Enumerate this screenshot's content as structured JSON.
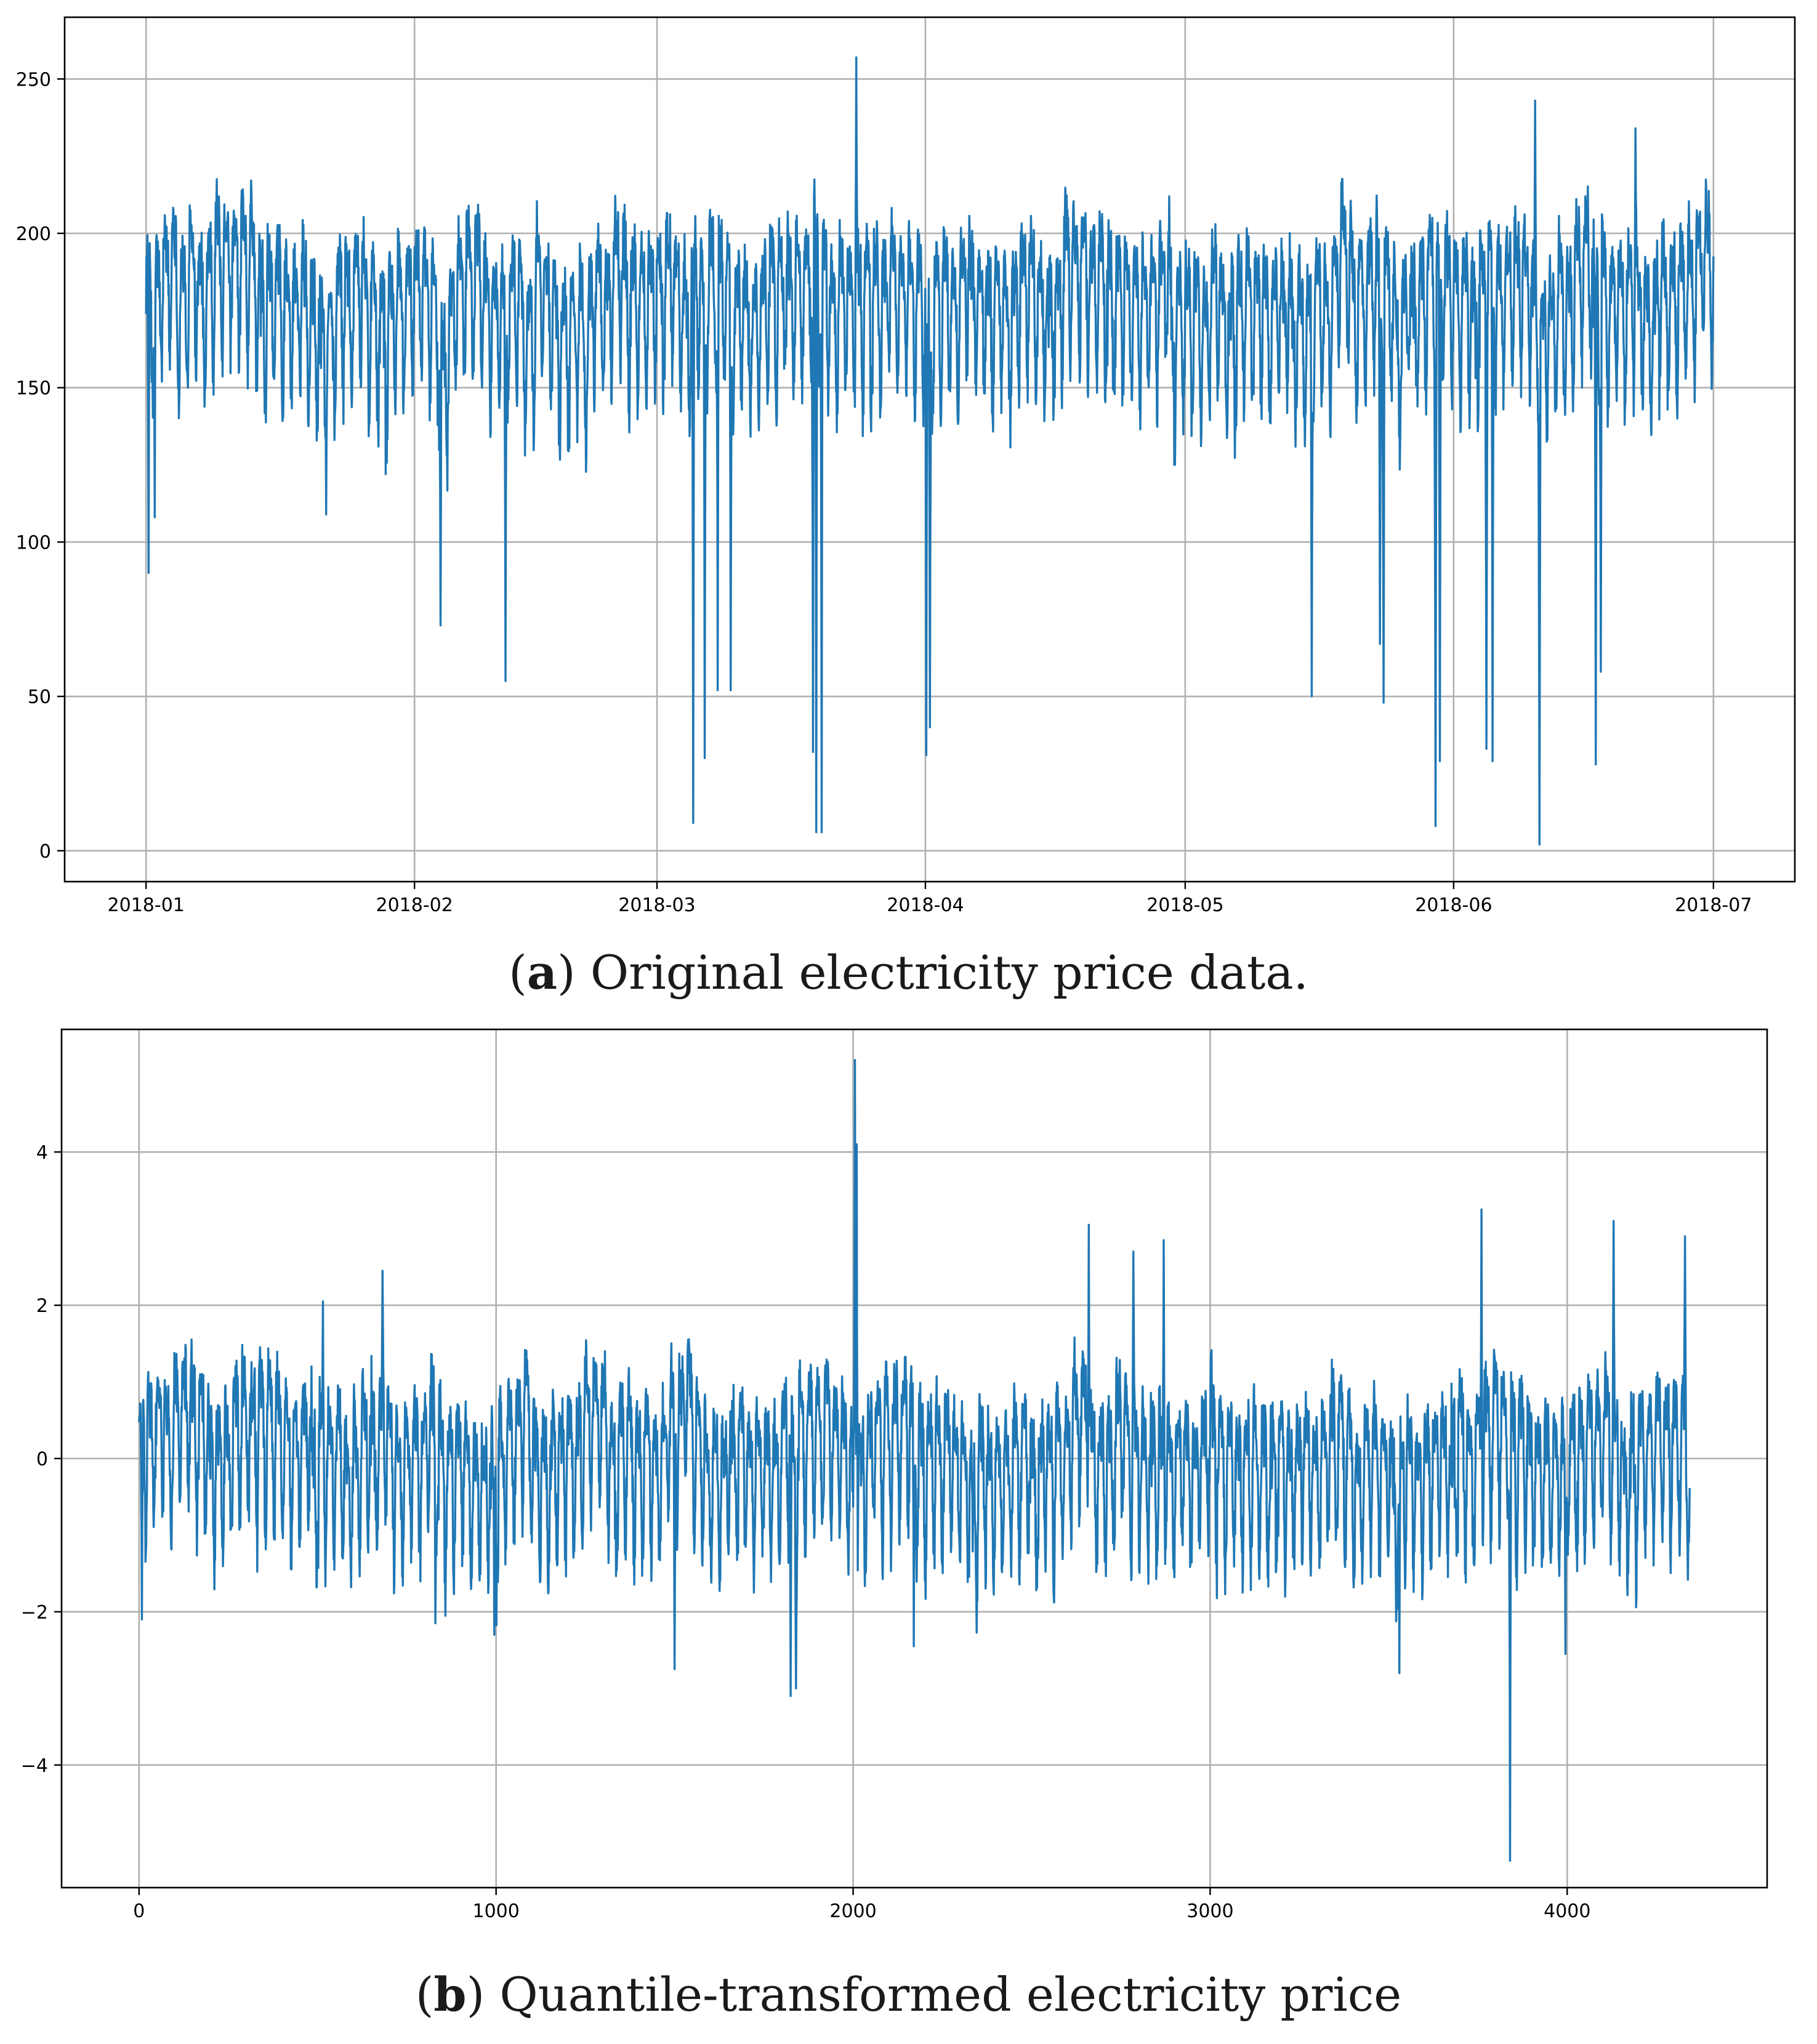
{
  "chart_data": [
    {
      "type": "line",
      "panel_label": "a",
      "caption": "Original electricity price data.",
      "color": "#1f77b4",
      "xlabel": "",
      "ylabel": "",
      "x_tick_labels": [
        "2018-01",
        "2018-02",
        "2018-03",
        "2018-04",
        "2018-05",
        "2018-06",
        "2018-07"
      ],
      "x_tick_days": [
        0,
        31,
        59,
        90,
        120,
        151,
        181
      ],
      "xlim_days": [
        -9.4,
        190.4
      ],
      "y_ticks": [
        0,
        50,
        100,
        150,
        200,
        250
      ],
      "ylim": [
        -10,
        270
      ],
      "grid": true,
      "series": [
        {
          "name": "price",
          "n_points": 4344,
          "x_unit": "days since 2018-01-01",
          "baseline_range": [
            140,
            215
          ],
          "spikes": [
            {
              "x": 0.3,
              "y": 90
            },
            {
              "x": 1.0,
              "y": 108
            },
            {
              "x": 34.0,
              "y": 73
            },
            {
              "x": 41.5,
              "y": 55
            },
            {
              "x": 63.2,
              "y": 9
            },
            {
              "x": 64.5,
              "y": 30
            },
            {
              "x": 66.0,
              "y": 52
            },
            {
              "x": 67.5,
              "y": 52
            },
            {
              "x": 77.0,
              "y": 32
            },
            {
              "x": 77.4,
              "y": 6
            },
            {
              "x": 78.0,
              "y": 6
            },
            {
              "x": 82.0,
              "y": 257
            },
            {
              "x": 90.1,
              "y": 31
            },
            {
              "x": 90.5,
              "y": 40
            },
            {
              "x": 134.6,
              "y": 50
            },
            {
              "x": 142.5,
              "y": 67
            },
            {
              "x": 142.9,
              "y": 48
            },
            {
              "x": 148.9,
              "y": 8
            },
            {
              "x": 149.4,
              "y": 29
            },
            {
              "x": 154.8,
              "y": 33
            },
            {
              "x": 155.5,
              "y": 29
            },
            {
              "x": 160.9,
              "y": 2
            },
            {
              "x": 160.4,
              "y": 243
            },
            {
              "x": 167.4,
              "y": 28
            },
            {
              "x": 168.0,
              "y": 58
            },
            {
              "x": 172.0,
              "y": 234
            }
          ]
        }
      ]
    },
    {
      "type": "line",
      "panel_label": "b",
      "caption": "Quantile-transformed electricity price",
      "color": "#1f77b4",
      "xlabel": "",
      "ylabel": "",
      "x_ticks": [
        0,
        1000,
        2000,
        3000,
        4000
      ],
      "xlim": [
        -217,
        4560
      ],
      "y_ticks": [
        -4,
        -2,
        0,
        2,
        4
      ],
      "y_tick_labels": [
        "−4",
        "−2",
        "0",
        "2",
        "4"
      ],
      "ylim": [
        -5.6,
        5.6
      ],
      "grid": true,
      "series": [
        {
          "name": "transformed price",
          "n_points": 4344,
          "x_range": [
            0,
            4343
          ],
          "baseline_range": [
            -1.5,
            1.5
          ],
          "spikes": [
            {
              "x": 8,
              "y": -2.1
            },
            {
              "x": 682,
              "y": 2.45
            },
            {
              "x": 515,
              "y": 2.05
            },
            {
              "x": 830,
              "y": -2.15
            },
            {
              "x": 995,
              "y": -2.3
            },
            {
              "x": 1500,
              "y": -2.75
            },
            {
              "x": 1825,
              "y": -3.1
            },
            {
              "x": 1840,
              "y": -3.0
            },
            {
              "x": 2005,
              "y": 5.2
            },
            {
              "x": 2010,
              "y": 4.1
            },
            {
              "x": 2170,
              "y": -2.45
            },
            {
              "x": 2660,
              "y": 3.05
            },
            {
              "x": 2785,
              "y": 2.7
            },
            {
              "x": 2870,
              "y": 2.85
            },
            {
              "x": 3530,
              "y": -2.8
            },
            {
              "x": 3760,
              "y": 3.25
            },
            {
              "x": 3840,
              "y": -5.25
            },
            {
              "x": 3995,
              "y": -2.55
            },
            {
              "x": 4130,
              "y": 3.1
            },
            {
              "x": 4330,
              "y": 2.9
            }
          ]
        }
      ]
    }
  ],
  "captions": {
    "a": {
      "label": "a",
      "text": " Original electricity price data."
    },
    "b": {
      "label": "b",
      "text": " Quantile-transformed electricity price"
    }
  }
}
